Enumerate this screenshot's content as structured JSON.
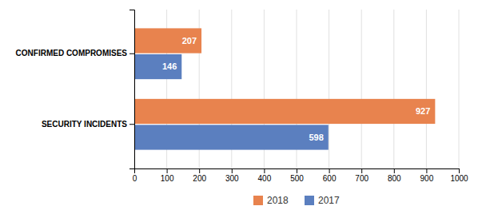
{
  "chart_data": {
    "type": "bar",
    "orientation": "horizontal",
    "categories": [
      "SECURITY INCIDENTS",
      "CONFIRMED COMPROMISES"
    ],
    "series": [
      {
        "name": "2018",
        "color": "#E8834E",
        "values": [
          927,
          207
        ]
      },
      {
        "name": "2017",
        "color": "#5B7FBF",
        "values": [
          598,
          146
        ]
      }
    ],
    "xlim": [
      0,
      1000
    ],
    "xticks": [
      0,
      100,
      200,
      300,
      400,
      500,
      600,
      700,
      800,
      900,
      1000
    ],
    "grid": true,
    "legend": "bottom",
    "data_labels": true
  }
}
